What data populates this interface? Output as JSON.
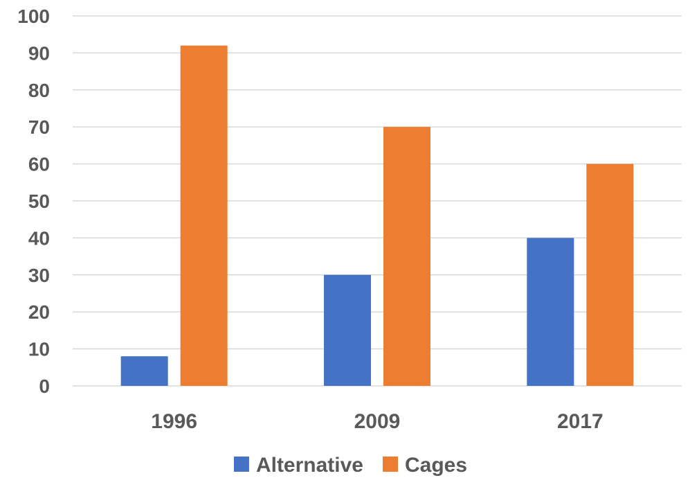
{
  "chart_data": {
    "type": "bar",
    "title": "",
    "xlabel": "",
    "ylabel": "",
    "categories": [
      "1996",
      "2009",
      "2017"
    ],
    "series": [
      {
        "name": "Alternative",
        "values": [
          8,
          30,
          40
        ],
        "color": "#4472C4"
      },
      {
        "name": "Cages",
        "values": [
          92,
          70,
          60
        ],
        "color": "#ED7D31"
      }
    ],
    "ylim": [
      0,
      100
    ],
    "yticks": [
      0,
      10,
      20,
      30,
      40,
      50,
      60,
      70,
      80,
      90,
      100
    ],
    "grid": true,
    "legend_position": "bottom"
  }
}
